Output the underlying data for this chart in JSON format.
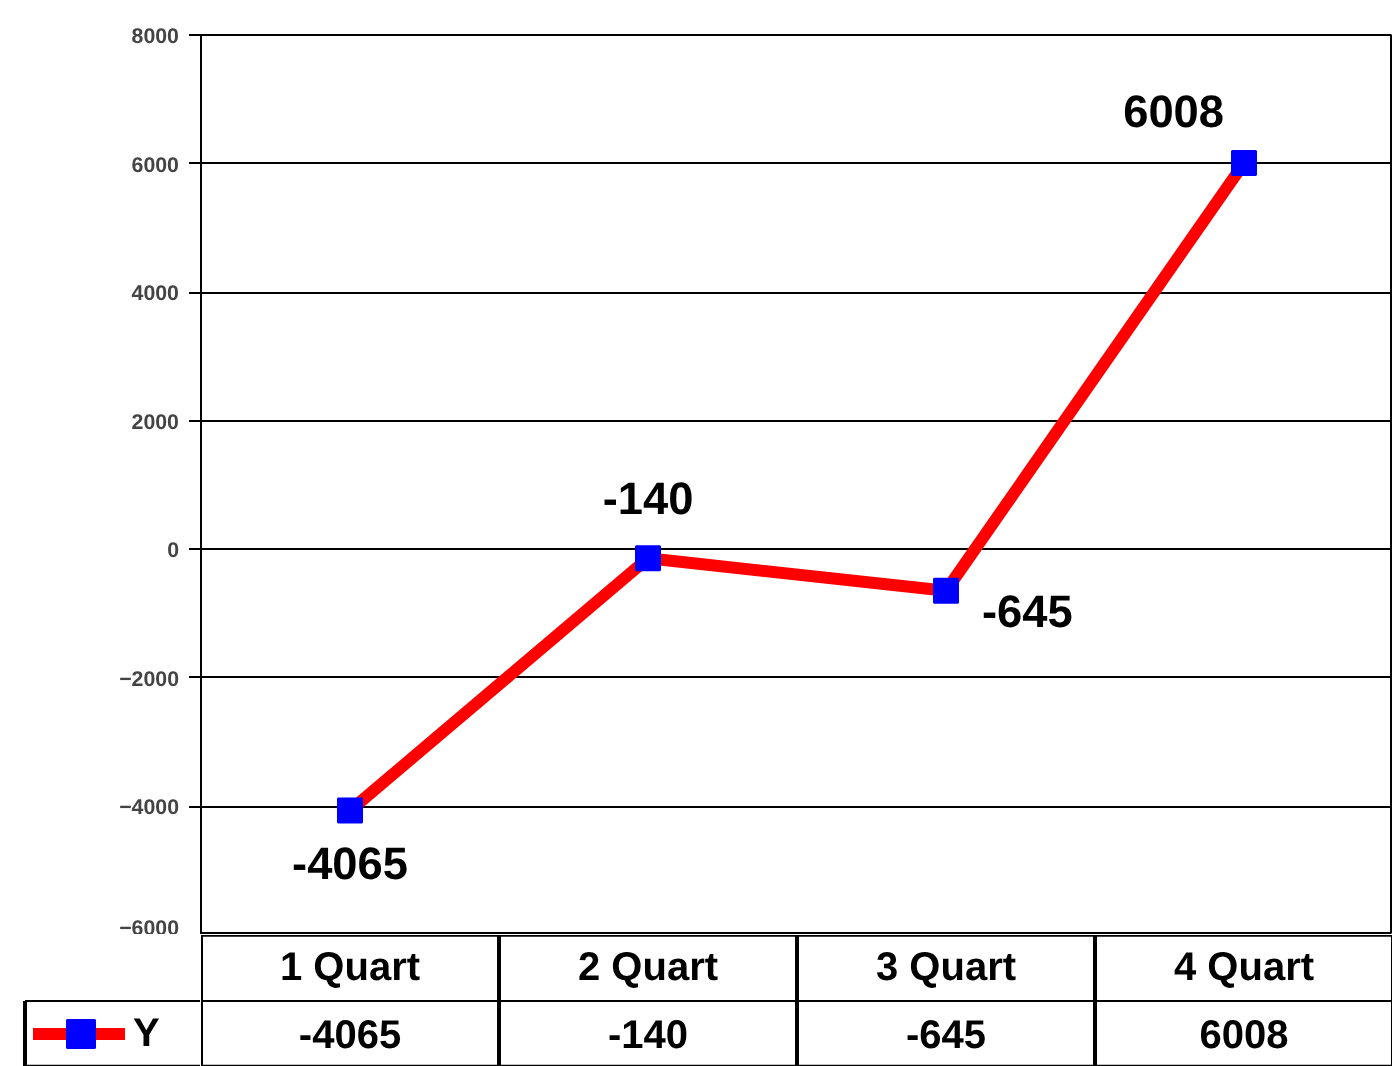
{
  "chart_data": {
    "type": "line",
    "categories": [
      "1 Quart",
      "2 Quart",
      "3 Quart",
      "4 Quart"
    ],
    "series": [
      {
        "name": "Y",
        "color": "#ff0000",
        "colors": [
          "#0000ff",
          "#0000ff",
          "#0000ff",
          "#0000ff"
        ],
        "values": [
          -4065,
          -140,
          -645,
          6008
        ]
      }
    ],
    "ylim": [
      -6000,
      8000
    ],
    "yticks": [
      -6000,
      -4000,
      -2000,
      0,
      2000,
      4000,
      6000,
      8000
    ],
    "annotations": [
      {
        "text": "-4065",
        "x": "1 Quart",
        "y": -4065
      },
      {
        "text": "-140",
        "x": "2 Quart",
        "y": -140
      },
      {
        "text": "-645",
        "x": "3 Quart",
        "y": -645
      },
      {
        "text": "6008",
        "x": "4 Quart",
        "y": 6008
      }
    ],
    "grid": "y",
    "marker": "square",
    "line_style": "solid",
    "data_labels": true,
    "legend": "bottom"
  }
}
